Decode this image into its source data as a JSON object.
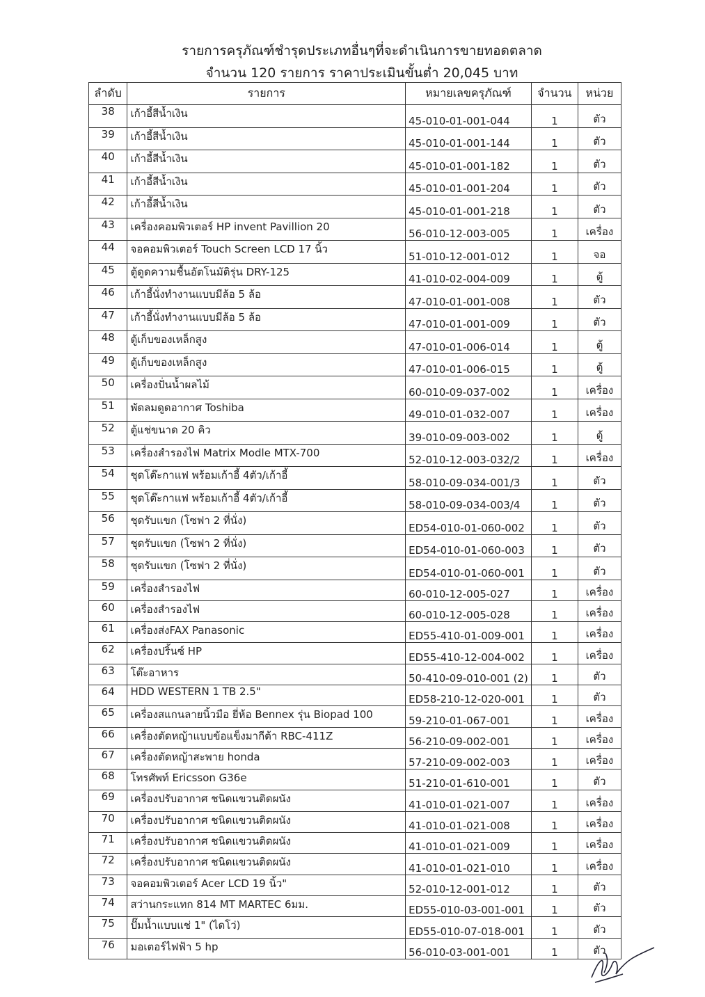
{
  "title": "รายการครุภัณฑ์ชำรุดประเภทอื่นๆที่จะดำเนินการขายทอดตลาด",
  "subtitle": "จำนวน 120 รายการ ราคาประเมินขั้นต่ำ 20,045 บาท",
  "columns": [
    "ลำดับ",
    "รายการ",
    "หมายเลขครุภัณฑ์",
    "จำนวน",
    "หน่วย"
  ],
  "rows": [
    [
      "38",
      "เก้าอี้สีน้ำเงิน",
      "45-010-01-001-044",
      "1",
      "ตัว"
    ],
    [
      "39",
      "เก้าอี้สีน้ำเงิน",
      "45-010-01-001-144",
      "1",
      "ตัว"
    ],
    [
      "40",
      "เก้าอี้สีน้ำเงิน",
      "45-010-01-001-182",
      "1",
      "ตัว"
    ],
    [
      "41",
      "เก้าอี้สีน้ำเงิน",
      "45-010-01-001-204",
      "1",
      "ตัว"
    ],
    [
      "42",
      "เก้าอี้สีน้ำเงิน",
      "45-010-01-001-218",
      "1",
      "ตัว"
    ],
    [
      "43",
      "เครื่องคอมพิวเตอร์ HP invent Pavillion 20",
      "56-010-12-003-005",
      "1",
      "เครื่อง"
    ],
    [
      "44",
      "จอคอมพิวเตอร์ Touch Screen LCD 17 นิ้ว",
      "51-010-12-001-012",
      "1",
      "จอ"
    ],
    [
      "45",
      "ตู้ดูดความชื้นอัตโนมัติรุ่น DRY-125",
      "41-010-02-004-009",
      "1",
      "ตู้"
    ],
    [
      "46",
      "เก้าอี้นั่งทำงานแบบมีล้อ 5 ล้อ",
      "47-010-01-001-008",
      "1",
      "ตัว"
    ],
    [
      "47",
      "เก้าอี้นั่งทำงานแบบมีล้อ 5 ล้อ",
      "47-010-01-001-009",
      "1",
      "ตัว"
    ],
    [
      "48",
      "ตู้เก็บของเหล็กสูง",
      "47-010-01-006-014",
      "1",
      "ตู้"
    ],
    [
      "49",
      "ตู้เก็บของเหล็กสูง",
      "47-010-01-006-015",
      "1",
      "ตู้"
    ],
    [
      "50",
      "เครื่องปั่นน้ำผลไม้",
      "60-010-09-037-002",
      "1",
      "เครื่อง"
    ],
    [
      "51",
      "พัดลมดูดอากาศ Toshiba",
      "49-010-01-032-007",
      "1",
      "เครื่อง"
    ],
    [
      "52",
      "ตู้แช่ขนาด 20 คิว",
      "39-010-09-003-002",
      "1",
      "ตู้"
    ],
    [
      "53",
      "เครื่องสำรองไฟ Matrix Modle MTX-700",
      "52-010-12-003-032/2",
      "1",
      "เครื่อง"
    ],
    [
      "54",
      "ชุดโต๊ะกาแฟ พร้อมเก้าอี้ 4ตัว/เก้าอี้",
      "58-010-09-034-001/3",
      "1",
      "ตัว"
    ],
    [
      "55",
      "ชุดโต๊ะกาแฟ พร้อมเก้าอี้ 4ตัว/เก้าอี้",
      "58-010-09-034-003/4",
      "1",
      "ตัว"
    ],
    [
      "56",
      "ชุดรับแขก (โซฟา 2 ที่นั่ง)",
      "ED54-010-01-060-002",
      "1",
      "ตัว"
    ],
    [
      "57",
      "ชุดรับแขก (โซฟา 2 ที่นั่ง)",
      "ED54-010-01-060-003",
      "1",
      "ตัว"
    ],
    [
      "58",
      "ชุดรับแขก (โซฟา 2 ที่นั่ง)",
      "ED54-010-01-060-001",
      "1",
      "ตัว"
    ],
    [
      "59",
      "เครื่องสำรองไฟ",
      "60-010-12-005-027",
      "1",
      "เครื่อง"
    ],
    [
      "60",
      "เครื่องสำรองไฟ",
      "60-010-12-005-028",
      "1",
      "เครื่อง"
    ],
    [
      "61",
      "เครื่องส่งFAX Panasonic",
      "ED55-410-01-009-001",
      "1",
      "เครื่อง"
    ],
    [
      "62",
      "เครื่องปริ้นซ์  HP",
      "ED55-410-12-004-002",
      "1",
      "เครื่อง"
    ],
    [
      "63",
      "โต๊ะอาหาร",
      "50-410-09-010-001 (2)",
      "1",
      "ตัว"
    ],
    [
      "64",
      "HDD WESTERN 1 TB 2.5\"",
      "ED58-210-12-020-001",
      "1",
      "ตัว"
    ],
    [
      "65",
      "เครื่องสแกนลายนิ้วมือ ยี่ห้อ Bennex  รุ่น Biopad 100",
      "59-210-01-067-001",
      "1",
      "เครื่อง"
    ],
    [
      "66",
      "เครื่องตัดหญ้าแบบข้อแข็งมากีต้า RBC-411Z",
      "56-210-09-002-001",
      "1",
      "เครื่อง"
    ],
    [
      "67",
      "เครื่องตัดหญ้าสะพาย honda",
      "57-210-09-002-003",
      "1",
      "เครื่อง"
    ],
    [
      "68",
      "โทรศัพท์ Ericsson G36e",
      "51-210-01-610-001",
      "1",
      "ตัว"
    ],
    [
      "69",
      "เครื่องปรับอากาศ ชนิดแขวนติดผนัง",
      "41-010-01-021-007",
      "1",
      "เครื่อง"
    ],
    [
      "70",
      "เครื่องปรับอากาศ ชนิดแขวนติดผนัง",
      "41-010-01-021-008",
      "1",
      "เครื่อง"
    ],
    [
      "71",
      "เครื่องปรับอากาศ ชนิดแขวนติดผนัง",
      "41-010-01-021-009",
      "1",
      "เครื่อง"
    ],
    [
      "72",
      "เครื่องปรับอากาศ ชนิดแขวนติดผนัง",
      "41-010-01-021-010",
      "1",
      "เครื่อง"
    ],
    [
      "73",
      "จอคอมพิวเตอร์ Acer LCD 19 นิ้ว\"",
      "52-010-12-001-012",
      "1",
      "ตัว"
    ],
    [
      "74",
      "สว่านกระแทก 814 MT MARTEC 6มม.",
      "ED55-010-03-001-001",
      "1",
      "ตัว"
    ],
    [
      "75",
      "ปั๊มน้ำแบบแช่ 1\" (ไดโว่)",
      "ED55-010-07-018-001",
      "1",
      "ตัว"
    ],
    [
      "76",
      "มอเตอร์ไฟฟ้า 5 hp",
      "56-010-03-001-001",
      "1",
      "ตัว"
    ]
  ]
}
